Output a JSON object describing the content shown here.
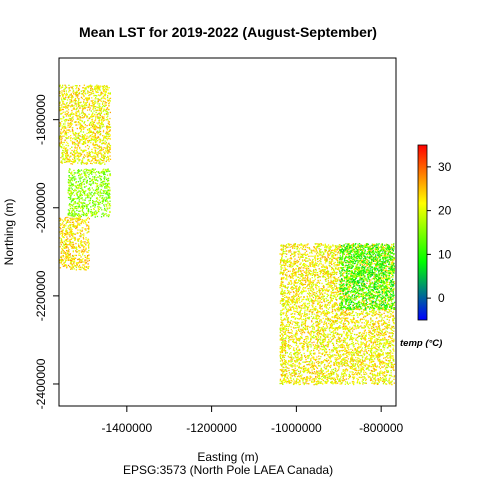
{
  "chart_data": {
    "type": "heatmap",
    "title": "Mean LST for 2019-2022 (August-September)",
    "xlabel": "Easting (m)",
    "ylabel": "Northing (m)",
    "subtitle": "EPSG:3573 (North Pole LAEA Canada)",
    "xlim": [
      -1560000,
      -765000
    ],
    "ylim": [
      -2450000,
      -1660000
    ],
    "x_ticks": [
      -1400000,
      -1200000,
      -1000000,
      -800000
    ],
    "x_tick_labels": [
      "-1400000",
      "-1200000",
      "-1000000",
      "-800000"
    ],
    "y_ticks": [
      -2400000,
      -2200000,
      -2000000,
      -1800000
    ],
    "y_tick_labels": [
      "-2400000",
      "-2200000",
      "-2000000",
      "-1800000"
    ],
    "legend": {
      "title": "temp (°C)",
      "range": [
        -5,
        35
      ],
      "ticks": [
        0,
        10,
        20,
        30
      ],
      "tick_labels": [
        "0",
        "10",
        "20",
        "30"
      ],
      "colors": [
        "#0000ff",
        "#00ff00",
        "#ffff00",
        "#ff0000"
      ],
      "placement": "right"
    },
    "clusters": [
      {
        "region": "northwest",
        "x_range": [
          -1560000,
          -1440000
        ],
        "y_range": [
          -1900000,
          -1720000
        ],
        "dominant_temp": 22
      },
      {
        "region": "west-central",
        "x_range": [
          -1540000,
          -1440000
        ],
        "y_range": [
          -2020000,
          -1910000
        ],
        "dominant_temp": 16
      },
      {
        "region": "west-south",
        "x_range": [
          -1560000,
          -1490000
        ],
        "y_range": [
          -2140000,
          -2020000
        ],
        "dominant_temp": 23
      },
      {
        "region": "east-main",
        "x_range": [
          -1040000,
          -770000
        ],
        "y_range": [
          -2400000,
          -2080000
        ],
        "dominant_temp": 22
      },
      {
        "region": "east-cool",
        "x_range": [
          -900000,
          -770000
        ],
        "y_range": [
          -2230000,
          -2080000
        ],
        "dominant_temp": 10
      }
    ]
  }
}
